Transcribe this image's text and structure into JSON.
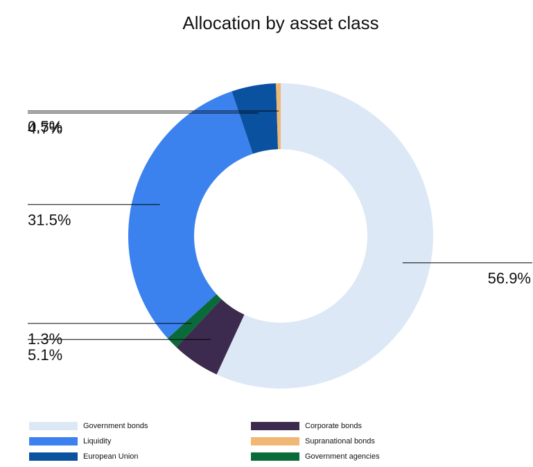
{
  "chart_data": {
    "type": "donut",
    "title": "Allocation by asset class",
    "categories": [
      "Government bonds",
      "Corporate bonds",
      "Government agencies",
      "Liquidity",
      "European Union",
      "Supranational bonds"
    ],
    "values": [
      56.9,
      5.1,
      1.3,
      31.5,
      4.7,
      0.5
    ],
    "value_labels": [
      "56.9%",
      "5.1%",
      "1.3%",
      "31.5%",
      "4.7%",
      "0.5%"
    ],
    "colors": [
      "#dde8f6",
      "#3d2b4f",
      "#0a6b3a",
      "#3b82ee",
      "#0a52a0",
      "#f0b775"
    ],
    "legend_order": [
      0,
      1,
      3,
      5,
      4,
      2
    ]
  }
}
